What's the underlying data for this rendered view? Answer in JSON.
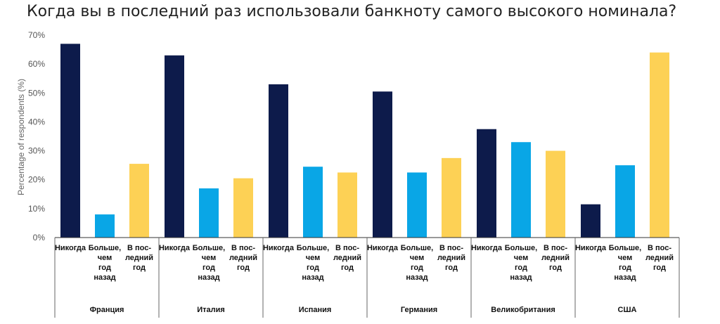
{
  "chart_data": {
    "type": "bar",
    "title": "Когда вы в последний раз использовали банкноту самого высокого номинала?",
    "ylabel": "Percentage of respondents (%)",
    "ylim": [
      0,
      70
    ],
    "yticks": [
      0,
      10,
      20,
      30,
      40,
      50,
      60,
      70
    ],
    "ytick_labels": [
      "0%",
      "10%",
      "20%",
      "30%",
      "40%",
      "50%",
      "60%",
      "70%"
    ],
    "grid": false,
    "colors": [
      "#0d1b4b",
      "#09a6e6",
      "#fdd155"
    ],
    "category_labels": [
      [
        "Никогда"
      ],
      [
        "Больше,",
        "чем",
        "год",
        "назад"
      ],
      [
        "В пос-",
        "ледний",
        "год"
      ]
    ],
    "groups": [
      {
        "name": "Франция",
        "values": [
          67,
          8,
          25.5
        ]
      },
      {
        "name": "Италия",
        "values": [
          63,
          17,
          20.5
        ]
      },
      {
        "name": "Испания",
        "values": [
          53,
          24.5,
          22.5
        ]
      },
      {
        "name": "Германия",
        "values": [
          50.5,
          22.5,
          27.5
        ]
      },
      {
        "name": "Великобритания",
        "values": [
          37.5,
          33,
          30
        ]
      },
      {
        "name": "США",
        "values": [
          11.5,
          25,
          64
        ]
      }
    ]
  }
}
